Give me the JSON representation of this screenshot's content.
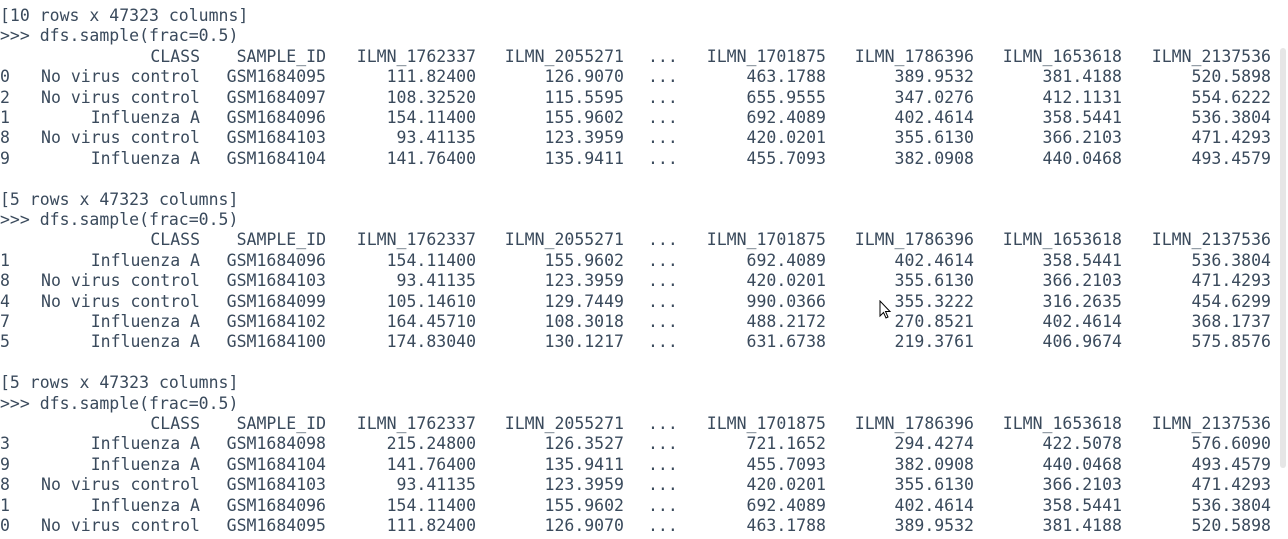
{
  "colors": {
    "text": "#3a4a5c",
    "background": "#ffffff"
  },
  "header": {
    "line": "[10 rows x 47323 columns]"
  },
  "columns": [
    "",
    "CLASS",
    "SAMPLE_ID",
    "ILMN_1762337",
    "ILMN_2055271",
    "...",
    "ILMN_1701875",
    "ILMN_1786396",
    "ILMN_1653618",
    "ILMN_2137536"
  ],
  "blocks": [
    {
      "prompt": ">>> dfs.sample(frac=0.5)",
      "rows": [
        [
          "0",
          "No virus control",
          "GSM1684095",
          "111.82400",
          "126.9070",
          "...",
          "463.1788",
          "389.9532",
          "381.4188",
          "520.5898"
        ],
        [
          "2",
          "No virus control",
          "GSM1684097",
          "108.32520",
          "115.5595",
          "...",
          "655.9555",
          "347.0276",
          "412.1131",
          "554.6222"
        ],
        [
          "1",
          "Influenza A",
          "GSM1684096",
          "154.11400",
          "155.9602",
          "...",
          "692.4089",
          "402.4614",
          "358.5441",
          "536.3804"
        ],
        [
          "8",
          "No virus control",
          "GSM1684103",
          "93.41135",
          "123.3959",
          "...",
          "420.0201",
          "355.6130",
          "366.2103",
          "471.4293"
        ],
        [
          "9",
          "Influenza A",
          "GSM1684104",
          "141.76400",
          "135.9411",
          "...",
          "455.7093",
          "382.0908",
          "440.0468",
          "493.4579"
        ]
      ],
      "summary": "[5 rows x 47323 columns]"
    },
    {
      "prompt": ">>> dfs.sample(frac=0.5)",
      "rows": [
        [
          "1",
          "Influenza A",
          "GSM1684096",
          "154.11400",
          "155.9602",
          "...",
          "692.4089",
          "402.4614",
          "358.5441",
          "536.3804"
        ],
        [
          "8",
          "No virus control",
          "GSM1684103",
          "93.41135",
          "123.3959",
          "...",
          "420.0201",
          "355.6130",
          "366.2103",
          "471.4293"
        ],
        [
          "4",
          "No virus control",
          "GSM1684099",
          "105.14610",
          "129.7449",
          "...",
          "990.0366",
          "355.3222",
          "316.2635",
          "454.6299"
        ],
        [
          "7",
          "Influenza A",
          "GSM1684102",
          "164.45710",
          "108.3018",
          "...",
          "488.2172",
          "270.8521",
          "402.4614",
          "368.1737"
        ],
        [
          "5",
          "Influenza A",
          "GSM1684100",
          "174.83040",
          "130.1217",
          "...",
          "631.6738",
          "219.3761",
          "406.9674",
          "575.8576"
        ]
      ],
      "summary": "[5 rows x 47323 columns]"
    },
    {
      "prompt": ">>> dfs.sample(frac=0.5)",
      "rows": [
        [
          "3",
          "Influenza A",
          "GSM1684098",
          "215.24800",
          "126.3527",
          "...",
          "721.1652",
          "294.4274",
          "422.5078",
          "576.6090"
        ],
        [
          "9",
          "Influenza A",
          "GSM1684104",
          "141.76400",
          "135.9411",
          "...",
          "455.7093",
          "382.0908",
          "440.0468",
          "493.4579"
        ],
        [
          "8",
          "No virus control",
          "GSM1684103",
          "93.41135",
          "123.3959",
          "...",
          "420.0201",
          "355.6130",
          "366.2103",
          "471.4293"
        ],
        [
          "1",
          "Influenza A",
          "GSM1684096",
          "154.11400",
          "155.9602",
          "...",
          "692.4089",
          "402.4614",
          "358.5441",
          "536.3804"
        ],
        [
          "0",
          "No virus control",
          "GSM1684095",
          "111.82400",
          "126.9070",
          "...",
          "463.1788",
          "389.9532",
          "381.4188",
          "520.5898"
        ]
      ],
      "summary": ""
    }
  ]
}
